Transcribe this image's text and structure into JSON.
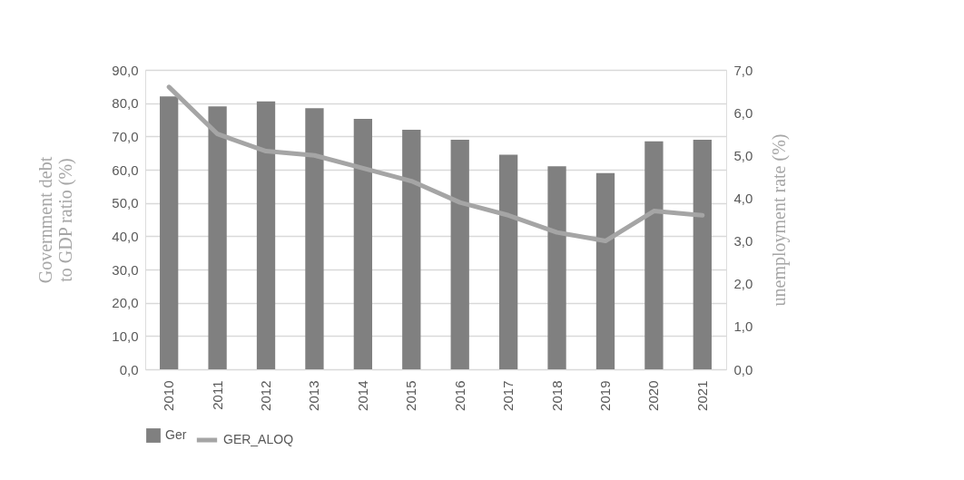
{
  "chart_data": {
    "type": "bar",
    "categories": [
      "2010",
      "2011",
      "2012",
      "2013",
      "2014",
      "2015",
      "2016",
      "2017",
      "2018",
      "2019",
      "2020",
      "2021"
    ],
    "ylabel": "Government debt to GDP ratio (%)",
    "y2label": "unemployment rate (%)",
    "series": [
      {
        "name": "Ger",
        "color": "#808080",
        "values": [
          82,
          79,
          80.5,
          78.5,
          75.3,
          72,
          69,
          64.5,
          61,
          59,
          68.5,
          69
        ]
      },
      {
        "name": "GER_ALOQ",
        "type": "line",
        "axis": "y2",
        "color": "#a5a5a5",
        "values": [
          6.6,
          5.5,
          5.1,
          5.0,
          4.7,
          4.4,
          3.9,
          3.6,
          3.2,
          3.0,
          3.7,
          3.6
        ]
      }
    ],
    "ylim": [
      0,
      90
    ],
    "yticks": [
      {
        "value": 0,
        "label": "0,0"
      },
      {
        "value": 10,
        "label": "10,0"
      },
      {
        "value": 20,
        "label": "20,0"
      },
      {
        "value": 30,
        "label": "30,0"
      },
      {
        "value": 40,
        "label": "40,0"
      },
      {
        "value": 50,
        "label": "50,0"
      },
      {
        "value": 60,
        "label": "60,0"
      },
      {
        "value": 70,
        "label": "70,0"
      },
      {
        "value": 80,
        "label": "80,0"
      },
      {
        "value": 90,
        "label": "90,0"
      }
    ],
    "y2lim": [
      0,
      7
    ],
    "y2ticks": [
      {
        "value": 0,
        "label": "0,0"
      },
      {
        "value": 1,
        "label": "1,0"
      },
      {
        "value": 2,
        "label": "2,0"
      },
      {
        "value": 3,
        "label": "3,0"
      },
      {
        "value": 4,
        "label": "4,0"
      },
      {
        "value": 5,
        "label": "5,0"
      },
      {
        "value": 6,
        "label": "6,0"
      },
      {
        "value": 7,
        "label": "7,0"
      }
    ],
    "grid": "y",
    "legend": "bottom"
  }
}
